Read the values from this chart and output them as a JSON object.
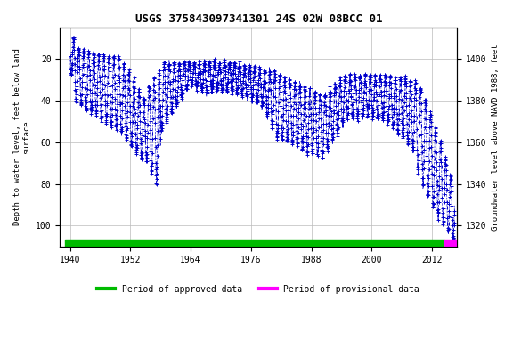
{
  "title": "USGS 375843097341301 24S 02W 08BCC 01",
  "title_fontsize": 9,
  "ylabel_left": "Depth to water level, feet below land\nsurface",
  "ylabel_right": "Groundwater level above NAVD 1988, feet",
  "xlim": [
    1938,
    2017
  ],
  "ylim_left": [
    110,
    5
  ],
  "ylim_right": [
    1310,
    1415
  ],
  "xticks": [
    1940,
    1952,
    1964,
    1976,
    1988,
    2000,
    2012
  ],
  "yticks_left": [
    20,
    40,
    60,
    80,
    100
  ],
  "yticks_right": [
    1320,
    1340,
    1360,
    1380,
    1400
  ],
  "data_color": "#0000CC",
  "bg_color": "#ffffff",
  "plot_bg_color": "#ffffff",
  "grid_color": "#bbbbbb",
  "legend_approved_color": "#00bb00",
  "legend_provisional_color": "#ff00ff",
  "font_family": "monospace",
  "approved_start": 1939,
  "approved_end": 2014.5,
  "prov_start": 2014.5,
  "prov_end": 2016.7,
  "land_surface_elev": 1420.0
}
